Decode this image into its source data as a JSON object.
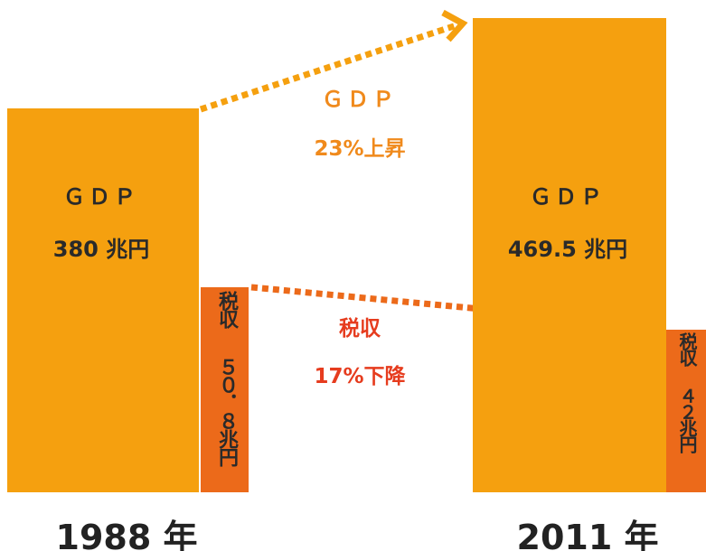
{
  "left": {
    "gdp_label": "ＧＤＰ",
    "gdp_value": "380 兆円",
    "tax_label": "税収",
    "tax_value": "５０．８兆円",
    "year": "1988 年"
  },
  "right": {
    "gdp_label": "ＧＤＰ",
    "gdp_value": "469.5 兆円",
    "tax_label": "税収",
    "tax_value": "４２兆円",
    "year": "2011 年"
  },
  "middle": {
    "gdp_label": "ＧＤＰ",
    "gdp_change": "23%上昇",
    "tax_label": "税収",
    "tax_change": "17%下降"
  }
}
